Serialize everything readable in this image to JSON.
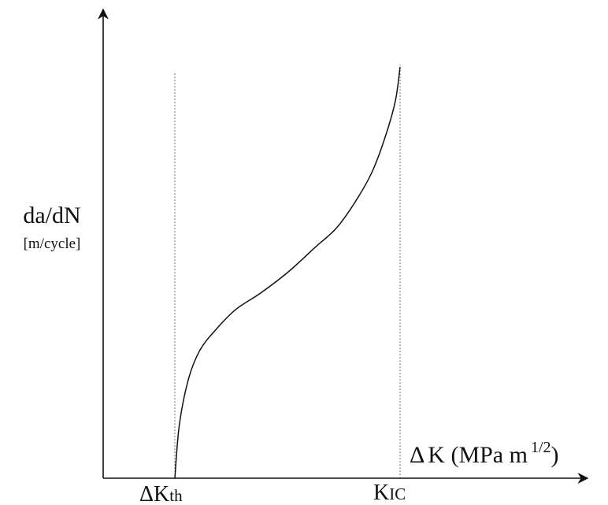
{
  "chart_data": {
    "type": "line",
    "title": "",
    "ylabel": "da/dN",
    "ylabel_unit": "[m/cycle]",
    "xlabel_delta": "Δ",
    "xlabel_main": "K (MPa m",
    "xlabel_exp": "1/2",
    "xlabel_close": ")",
    "threshold_label": {
      "delta": "Δ",
      "main": "K",
      "sub": "th"
    },
    "critical_label": {
      "main": "K",
      "sub": "IC"
    },
    "axis_ticks": "none",
    "grid": false,
    "line_color": "#111111",
    "reference_line_color": "#444444",
    "series": [
      {
        "values_normalized": [
          [
            0.0,
            0.0
          ],
          [
            0.02,
            0.13
          ],
          [
            0.06,
            0.24
          ],
          [
            0.11,
            0.31
          ],
          [
            0.18,
            0.36
          ],
          [
            0.27,
            0.41
          ],
          [
            0.38,
            0.45
          ],
          [
            0.5,
            0.5
          ],
          [
            0.62,
            0.56
          ],
          [
            0.72,
            0.61
          ],
          [
            0.81,
            0.68
          ],
          [
            0.88,
            0.75
          ],
          [
            0.94,
            0.84
          ],
          [
            0.98,
            0.92
          ],
          [
            1.0,
            1.0
          ]
        ]
      }
    ]
  }
}
